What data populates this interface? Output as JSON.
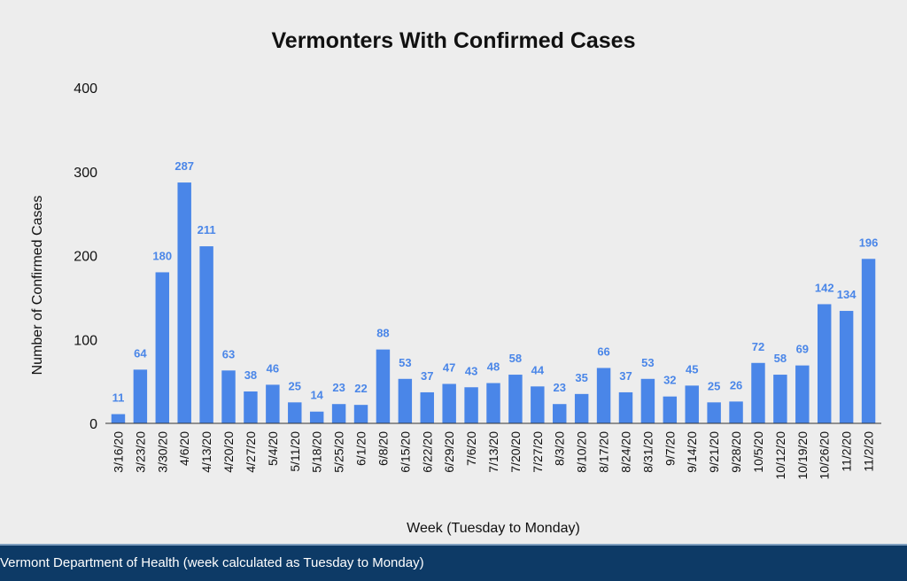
{
  "chart_data": {
    "type": "bar",
    "title": "Vermonters With Confirmed Cases",
    "xlabel": "Week (Tuesday to Monday)",
    "ylabel": "Number of Confirmed Cases",
    "ylim": [
      0,
      400
    ],
    "yticks": [
      "0",
      "100",
      "200",
      "300",
      "400"
    ],
    "grid": false,
    "bar_color": "#4a86e8",
    "label_color": "#4a86e8",
    "categories": [
      "3/16/20",
      "3/23/20",
      "3/30/20",
      "4/6/20",
      "4/13/20",
      "4/20/20",
      "4/27/20",
      "5/4/20",
      "5/11/20",
      "5/18/20",
      "5/25/20",
      "6/1/20",
      "6/8/20",
      "6/15/20",
      "6/22/20",
      "6/29/20",
      "7/6/20",
      "7/13/20",
      "7/20/20",
      "7/27/20",
      "8/3/20",
      "8/10/20",
      "8/17/20",
      "8/24/20",
      "8/31/20",
      "9/7/20",
      "9/14/20",
      "9/21/20",
      "9/28/20",
      "10/5/20",
      "10/12/20",
      "10/19/20",
      "10/26/20",
      "11/2/20",
      "11/2/20"
    ],
    "values": [
      11,
      64,
      180,
      287,
      211,
      63,
      38,
      46,
      25,
      14,
      23,
      22,
      88,
      53,
      37,
      47,
      43,
      48,
      58,
      44,
      23,
      35,
      66,
      37,
      53,
      32,
      45,
      25,
      26,
      72,
      58,
      69,
      142,
      134,
      196
    ]
  },
  "footer": {
    "text": "Vermont Department of Health (week calculated as Tuesday to Monday)",
    "background": "#0d3a66"
  }
}
